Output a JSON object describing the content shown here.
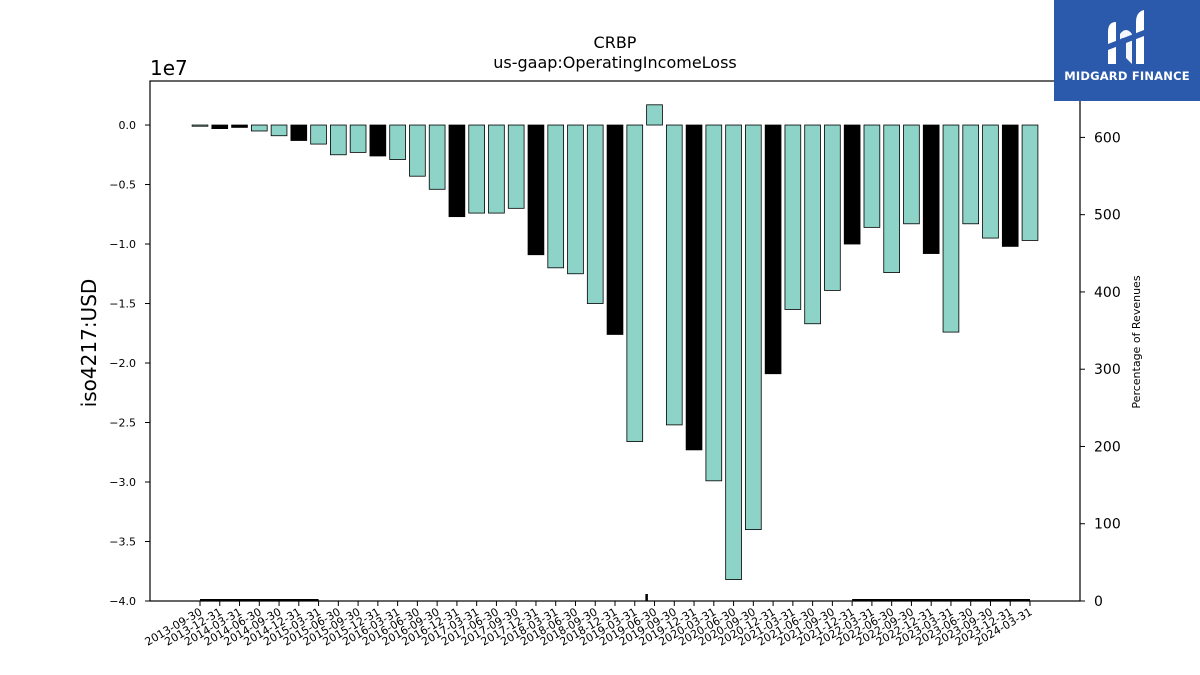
{
  "chart_data": {
    "type": "bar",
    "title": "CRBP",
    "subtitle": "us-gaap:OperatingIncomeLoss",
    "ylabel": "iso4217:USD",
    "y2label": "Percentage of Revenues",
    "offset_text": "1e7",
    "ylim": [
      -4.0,
      0.37
    ],
    "y2lim": [
      0,
      673
    ],
    "yticks": [
      0.0,
      -0.5,
      -1.0,
      -1.5,
      -2.0,
      -2.5,
      -3.0,
      -3.5,
      -4.0
    ],
    "ytick_labels": [
      "0.0",
      "−0.5",
      "−1.0",
      "−1.5",
      "−2.0",
      "−2.5",
      "−3.0",
      "−3.5",
      "−4.0"
    ],
    "y2ticks": [
      0,
      100,
      200,
      300,
      400,
      500,
      600
    ],
    "y2tick_labels": [
      "0",
      "100",
      "200",
      "300",
      "400",
      "500",
      "600"
    ],
    "categories": [
      "2013-09-30",
      "2013-12-31",
      "2014-03-31",
      "2014-06-30",
      "2014-09-30",
      "2014-12-31",
      "2015-03-31",
      "2015-06-30",
      "2015-09-30",
      "2015-12-31",
      "2016-03-31",
      "2016-06-30",
      "2016-09-30",
      "2016-12-31",
      "2017-03-31",
      "2017-06-30",
      "2017-09-30",
      "2017-12-31",
      "2018-03-31",
      "2018-06-30",
      "2018-09-30",
      "2018-12-31",
      "2019-03-31",
      "2019-06-30",
      "2019-09-30",
      "2019-12-31",
      "2020-03-31",
      "2020-06-30",
      "2020-09-30",
      "2020-12-31",
      "2021-03-31",
      "2021-06-30",
      "2021-09-30",
      "2021-12-31",
      "2022-03-31",
      "2022-06-30",
      "2022-09-30",
      "2022-12-31",
      "2023-03-31",
      "2023-06-30",
      "2023-09-30",
      "2023-12-31",
      "2024-03-31"
    ],
    "values": [
      -0.01,
      -0.03,
      -0.02,
      -0.05,
      -0.09,
      -0.13,
      -0.16,
      -0.25,
      -0.23,
      -0.26,
      -0.29,
      -0.43,
      -0.54,
      -0.77,
      -0.74,
      -0.74,
      -0.7,
      -1.09,
      -1.2,
      -1.25,
      -1.5,
      -1.76,
      -2.66,
      0.17,
      -2.52,
      -2.73,
      -2.99,
      -3.82,
      -3.4,
      -2.09,
      -1.55,
      -1.67,
      -1.39,
      -1.0,
      -0.86,
      -1.24,
      -0.83,
      -1.08,
      -1.74,
      -0.83,
      -0.95,
      -1.02,
      -0.97
    ],
    "highlight": [
      false,
      true,
      true,
      false,
      false,
      true,
      false,
      false,
      false,
      true,
      false,
      false,
      false,
      true,
      false,
      false,
      false,
      true,
      false,
      false,
      false,
      true,
      false,
      false,
      false,
      true,
      false,
      false,
      false,
      true,
      false,
      false,
      false,
      true,
      false,
      false,
      false,
      true,
      false,
      false,
      false,
      true,
      false
    ],
    "colors": {
      "normal": "#8dd3c7",
      "highlight": "#000000",
      "edge": "#000000"
    }
  },
  "logo": {
    "text": "MIDGARD FINANCE"
  }
}
